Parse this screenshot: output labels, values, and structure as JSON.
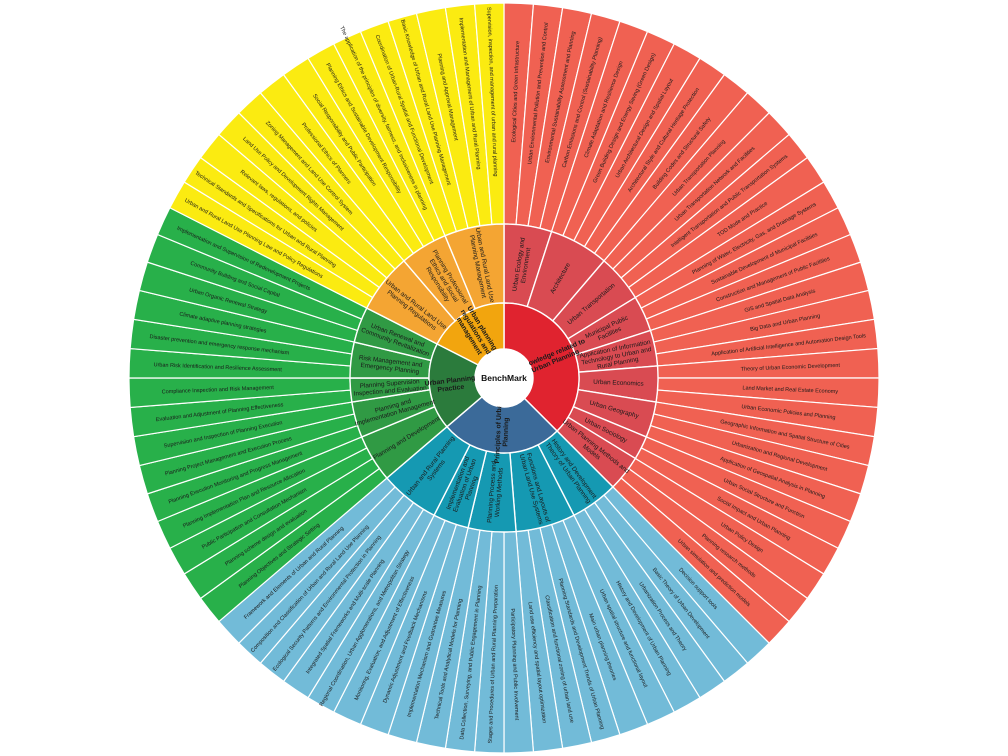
{
  "center_label": "BenchMark",
  "colors": {
    "red_inner": "#e0232f",
    "red_mid": "#d94b52",
    "red_outer": "#f06152",
    "blue_inner": "#3b6a99",
    "teal_mid": "#1599b2",
    "sky_outer": "#72bbd8",
    "green_inner": "#2b7b3c",
    "green_mid": "#309a44",
    "green_outer": "#28b04a",
    "orange_inner": "#f2a50e",
    "orange_mid": "#f4a533",
    "yellow_outer": "#fbeb11"
  },
  "categories": [
    {
      "label": "Knowledge related to Urban Planning",
      "color_key": "red",
      "subcategories": [
        {
          "label": "Urban Ecology and Environment",
          "items": [
            "Ecological Cities and Green Infrastructure",
            "Urban Environmental Pollution and Prevention and Control",
            "Environmental Sustainability Assessment and Planning",
            "Carbon Emissions and Control (Sustainability Planning)"
          ]
        },
        {
          "label": "Architecture",
          "items": [
            "Climate Adaptation and Resilience Design",
            "Green Building Design and Energy Saving (Green Design)",
            "Urban Architectural Design and Spatial Layout",
            "Architectural Style and Cultural Heritage Protection",
            "Building Codes and Structural Safety"
          ]
        },
        {
          "label": "Urban Transportation",
          "items": [
            "Urban Transportation Planning",
            "Urban Transportation Network and Facilities",
            "Intelligent Transportation and Public Transportation Systems",
            "TOD Mode and Practice"
          ]
        },
        {
          "label": "Municipal Public Facilities",
          "items": [
            "Planning of Water, Electricity, Gas, and Drainage Systems",
            "Sustainable Development of Municipal Facilities",
            "Construction and Management of Public Facilities"
          ]
        },
        {
          "label": "Application of Information Technology to Urban and Rural Planning",
          "items": [
            "GIS and Spatial Data Analysis",
            "Big Data and Urban Planning",
            "Application of Artificial Intelligence and Automation Design Tools"
          ]
        },
        {
          "label": "Urban Economics",
          "items": [
            "Theory of Urban Economic Development",
            "Land Market and Real Estate Economy",
            "Urban Economic Policies and Planning"
          ]
        },
        {
          "label": "Urban Geography",
          "items": [
            "Geographic Information and Spatial Structure of Cities",
            "Urbanization and Regional Development",
            "Application of Geospatial Analysis in Planning"
          ]
        },
        {
          "label": "Urban Sociology",
          "items": [
            "Urban Social Structure and Function",
            "Social Impact and Urban Planning"
          ]
        },
        {
          "label": "Urban Planning Methods and Models",
          "items": [
            "Urban Policy Design",
            "Planning research methods",
            "Urban simulation and prediction models"
          ]
        }
      ]
    },
    {
      "label": "Principles of Urban Planning",
      "color_key": "blue",
      "subcategories": [
        {
          "label": "History and Development Theory of Urban Planning",
          "items": [
            "Decision support tools",
            "Basic Theory of Urban Development",
            "Urbanization Process and Theory",
            "History and Development of Urban Planning"
          ]
        },
        {
          "label": "Functions and Layouts of Urban Land Use Systems",
          "items": [
            "Urban spatial structure and functional layout",
            "Main urban planning theories",
            "Planning Standards and Development Trends of Urban Planning",
            "Classification and functional zoning of urban land use",
            "Land use efficiency and spatial layout optimization"
          ]
        },
        {
          "label": "Planning Process and Working Methods",
          "items": [
            "Participatory Planning and Public Involvement",
            "Stages and Procedures of Urban and Rural Planning Preparation",
            "Data Collection, Surveying, and Public Engagement in Planning",
            "Technical Tools and Analytical Models for Planning"
          ]
        },
        {
          "label": "Implementation and Evaluation of Urban Planning",
          "items": [
            "Implementation Mechanism and Guarantee Measures",
            "Dynamic Adjustment and Feedback Mechanisms",
            "Monitoring, Evaluation, and Adjustment of Effectiveness"
          ]
        },
        {
          "label": "Urban and Rural Planning Systems",
          "items": [
            "Regional Coordination, Urban Agglomerations, and Metropolitan Strategy",
            "Integrated Spatial Frameworks and Multi-scale Planning",
            "Ecological Security Patterns and Environmental Protection in Planning",
            "Composition and Classification of Urban and Rural Land Use Planning",
            "Framework and Elements of Urban and Rural Planning"
          ]
        }
      ]
    },
    {
      "label": "Urban Planning Practice",
      "color_key": "green",
      "subcategories": [
        {
          "label": "Planning and Development",
          "items": [
            "Planning Objectives and Strategic Setting",
            "Planning scheme design and evaluation",
            "Public Participation and Consultation Mechanism",
            "Planning Implementation Plan and Resource Allocation"
          ]
        },
        {
          "label": "Planning and Implementation Management",
          "items": [
            "Planning Execution Monitoring and Progress Management",
            "Planning Project Management and Execution Process",
            "Supervision and Inspection of Planning Execution"
          ]
        },
        {
          "label": "Planning Supervision Inspection and Evaluation",
          "items": [
            "Evaluation and Adjustment of Planning Effectiveness",
            "Compliance Inspection and Risk Management"
          ]
        },
        {
          "label": "Risk Management and Emergency Planning",
          "items": [
            "Urban Risk Identification and Resilience Assessment",
            "Disaster prevention and emergency response mechanism",
            "Climate adaptive planning strategies"
          ]
        },
        {
          "label": "Urban Renewal and Community Revitalization",
          "items": [
            "Urban Organic Renewal Strategy",
            "Community Building and Social Capital",
            "Implementation and Supervision of Redevelopment Projects"
          ]
        }
      ]
    },
    {
      "label": "Urban planning regulations and management",
      "color_key": "orange",
      "subcategories": [
        {
          "label": "Urban and Rural Land Use Planning Regulations",
          "items": [
            "Urban and Rural Land Use Planning Law and Policy Regulations",
            "Technical Standards and Specifications for Urban and Rural Planning",
            "Relevant laws, regulations, and policies",
            "Land Use Policy and Development Rights Management",
            "Zoning Management and Land Use Control System"
          ]
        },
        {
          "label": "Planning Professional Ethics and Social Responsibility",
          "items": [
            "Professional Ethics of Planners",
            "Social Responsibility and Public Participation",
            "Planning Ethics and Sustainable Development Responsibility",
            "The application of the principles of diversity, fairness, and inclusiveness in planning"
          ]
        },
        {
          "label": "Urban and Rural Land Use Planning Management",
          "items": [
            "Coordination of Urban-Rural Spatial and Functional Development",
            "Basic Knowledge of Urban and Rural Land Use Planning Management",
            "Planning and Approval Management",
            "Implementation and Management of Urban and Rural Planning",
            "Supervision, inspection, and management of urban and rural planning"
          ]
        }
      ]
    }
  ]
}
